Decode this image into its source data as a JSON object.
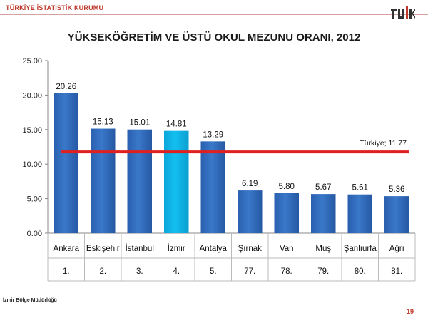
{
  "header": {
    "organization": "TÜRKİYE İSTATİSTİK KURUMU",
    "logo_text": "TÜİK"
  },
  "footer": {
    "office": "İzmir Bölge Müdürlüğü",
    "page_number": "19"
  },
  "colors": {
    "accent": "#c0392b",
    "bar": "#3a78c9",
    "bar_highlight": "#13bff0",
    "reference_line": "#e02020"
  },
  "chart_data": {
    "type": "bar",
    "title": "YÜKSEKÖĞRETİM VE ÜSTÜ OKUL MEZUNU ORANI, 2012",
    "categories": [
      "Ankara",
      "Eskişehir",
      "İstanbul",
      "İzmir",
      "Antalya",
      "Şırnak",
      "Van",
      "Muş",
      "Şanlıurfa",
      "Ağrı"
    ],
    "ranks": [
      "1.",
      "2.",
      "3.",
      "4.",
      "5.",
      "77.",
      "78.",
      "79.",
      "80.",
      "81."
    ],
    "values": [
      20.26,
      15.13,
      15.01,
      14.81,
      13.29,
      6.19,
      5.8,
      5.67,
      5.61,
      5.36
    ],
    "value_labels": [
      "20.26",
      "15.13",
      "15.01",
      "14.81",
      "13.29",
      "6.19",
      "5.80",
      "5.67",
      "5.61",
      "5.36"
    ],
    "highlight_category": "İzmir",
    "ylim": [
      0,
      25
    ],
    "yticks": [
      "0.00",
      "5.00",
      "10.00",
      "15.00",
      "20.00",
      "25.00"
    ],
    "reference_line": {
      "value": 11.77,
      "label": "Türkiye; 11.77"
    },
    "grid": false,
    "legend": "none"
  }
}
